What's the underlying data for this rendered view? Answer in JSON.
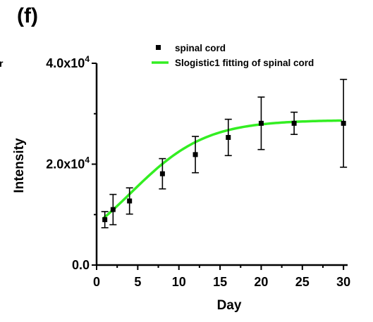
{
  "panel_label": "(f)",
  "edge_mark": "r",
  "chart_data": {
    "type": "scatter",
    "xlabel": "Day",
    "ylabel": "Intensity",
    "xlim": [
      0,
      30.5
    ],
    "ylim": [
      0,
      40000
    ],
    "xticks": [
      {
        "value": 0,
        "label": "0"
      },
      {
        "value": 5,
        "label": "5"
      },
      {
        "value": 10,
        "label": "10"
      },
      {
        "value": 15,
        "label": "15"
      },
      {
        "value": 20,
        "label": "20"
      },
      {
        "value": 25,
        "label": "25"
      },
      {
        "value": 30,
        "label": "30"
      }
    ],
    "yticks": [
      {
        "value": 0,
        "label": "0.0",
        "exp": ""
      },
      {
        "value": 20000,
        "label": "2.0x10",
        "exp": "4"
      },
      {
        "value": 40000,
        "label": "4.0x10",
        "exp": "4"
      }
    ],
    "legend_position": "top-right",
    "series": [
      {
        "name": "spinal cord",
        "kind": "points_with_error",
        "color": "#000000",
        "x": [
          1,
          2,
          4,
          8,
          12,
          16,
          20,
          24,
          30
        ],
        "y": [
          9000,
          11000,
          12700,
          18100,
          21900,
          25300,
          28100,
          28100,
          28100
        ],
        "err": [
          1600,
          3000,
          2600,
          3000,
          3600,
          3600,
          5200,
          2200,
          8700
        ]
      },
      {
        "name": "Slogistic1 fitting of spinal cord",
        "kind": "fit_line",
        "color": "#33ee22",
        "model": "logistic",
        "params": {
          "a": 28750,
          "k": 0.22,
          "xc": 4.2
        }
      }
    ]
  }
}
